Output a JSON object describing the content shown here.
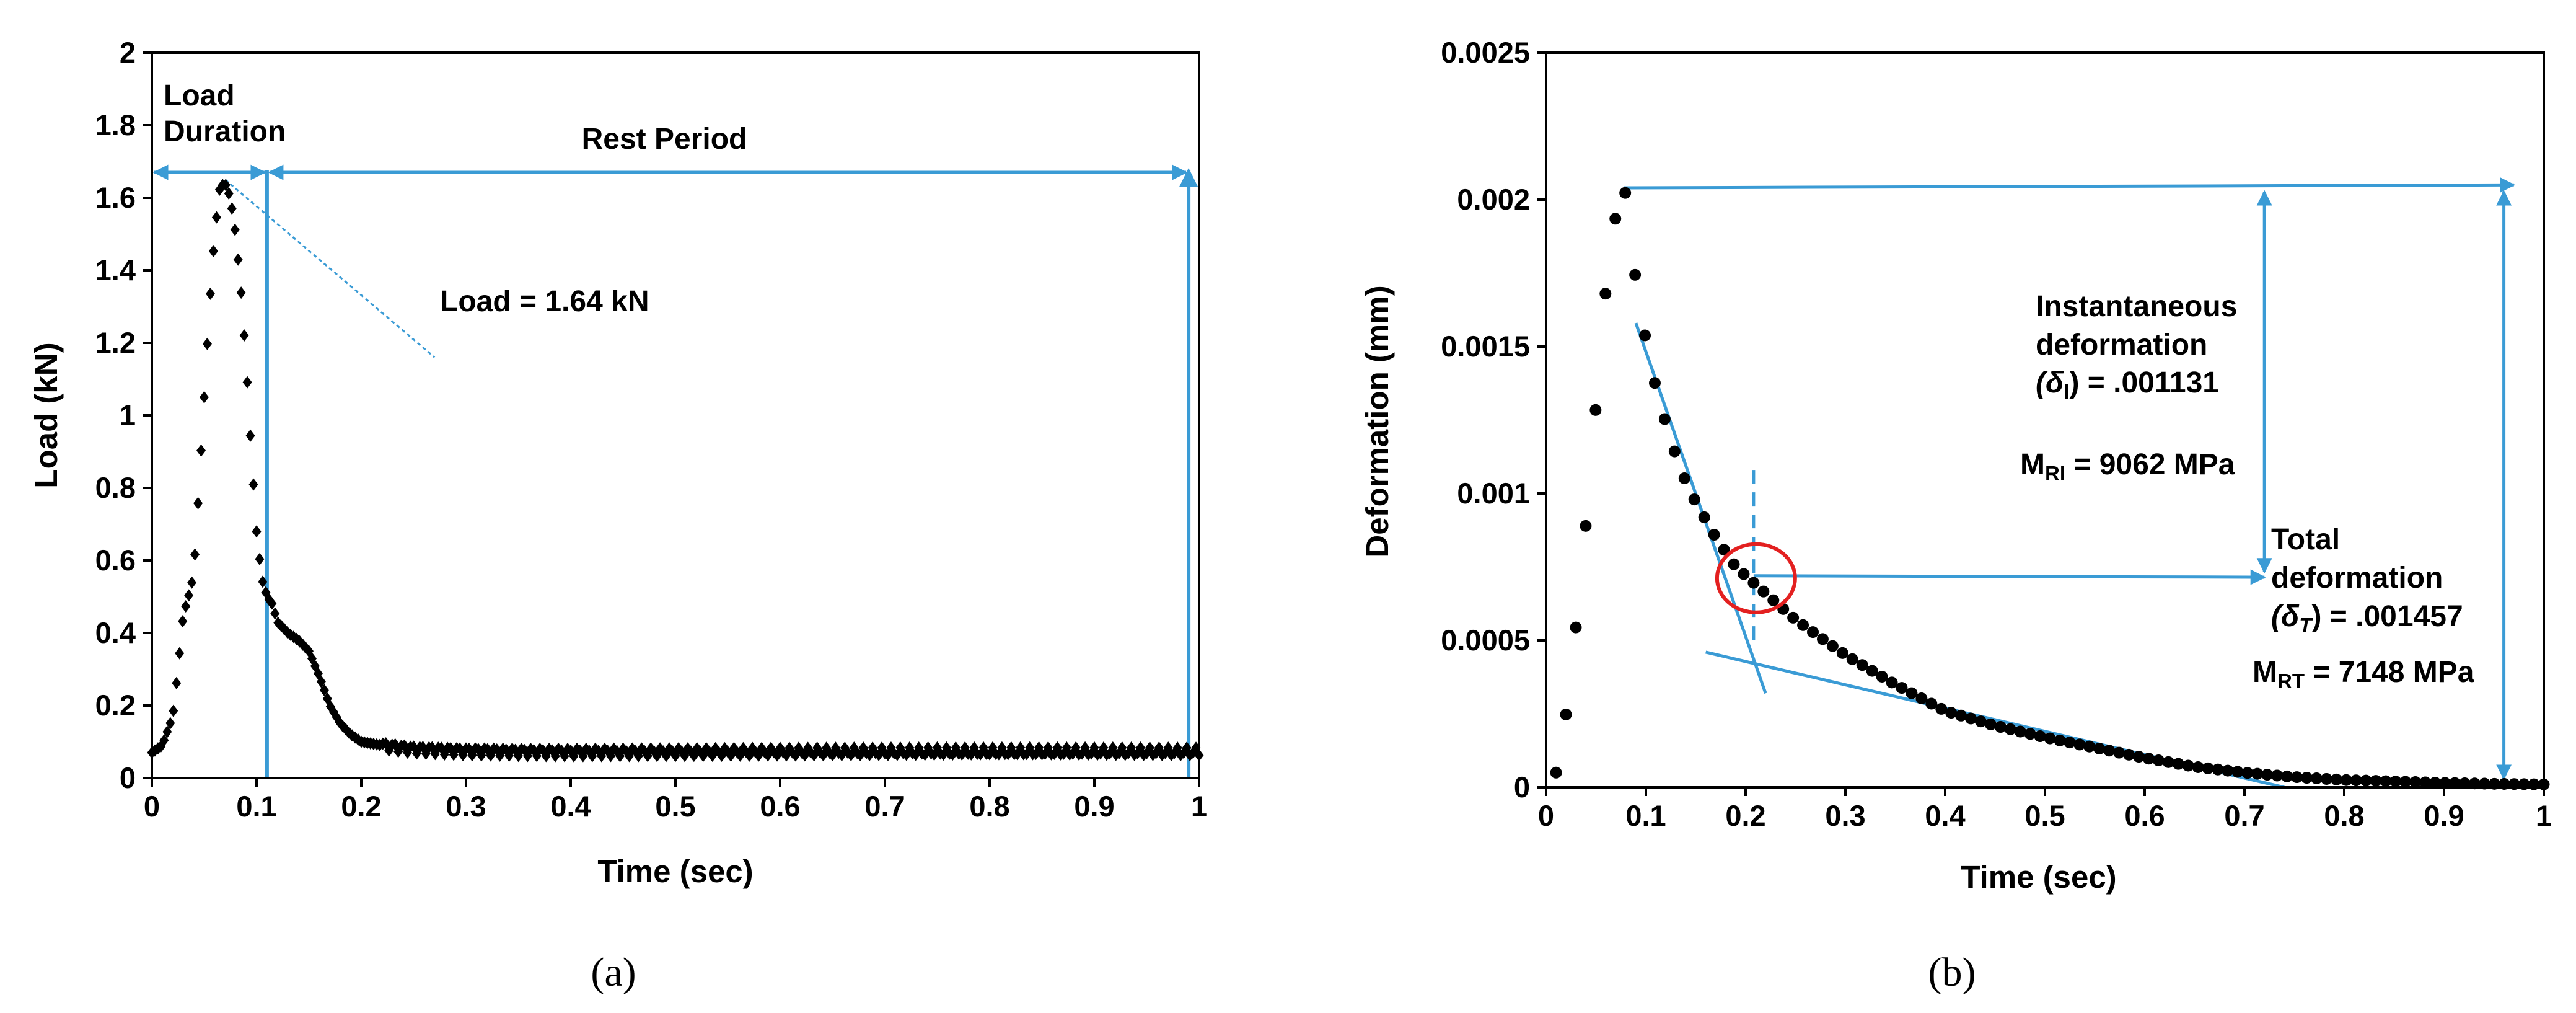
{
  "colors": {
    "annotation": "#3a9bd5",
    "highlight": "#e32020",
    "marker": "#000000"
  },
  "chart_data": [
    {
      "type": "scatter",
      "panel_label": "(a)",
      "marker": "diamond",
      "xlabel": "Time (sec)",
      "ylabel": "Load (kN)",
      "xlim": [
        0,
        1
      ],
      "ylim": [
        0,
        2
      ],
      "xticks": [
        "0",
        "0.1",
        "0.2",
        "0.3",
        "0.4",
        "0.5",
        "0.6",
        "0.7",
        "0.8",
        "0.9",
        "1"
      ],
      "yticks": [
        "0",
        "0.2",
        "0.4",
        "0.6",
        "0.8",
        "1",
        "1.2",
        "1.4",
        "1.6",
        "1.8",
        "2"
      ],
      "grid": false,
      "profile": {
        "x": [
          0,
          0.01,
          0.02,
          0.025,
          0.03,
          0.035,
          0.04,
          0.045,
          0.05,
          0.055,
          0.06,
          0.065,
          0.07,
          0.075,
          0.08,
          0.085,
          0.09,
          0.095,
          0.1,
          0.105,
          0.11,
          0.115,
          0.12,
          0.13,
          0.14,
          0.15,
          0.16,
          0.17,
          0.18,
          0.19,
          0.2,
          0.22,
          0.25,
          0.3,
          0.35,
          0.4,
          0.5,
          0.6,
          0.7,
          0.8,
          0.9,
          1.0
        ],
        "y": [
          0.07,
          0.09,
          0.17,
          0.3,
          0.45,
          0.5,
          0.56,
          0.8,
          1.05,
          1.3,
          1.5,
          1.63,
          1.64,
          1.6,
          1.5,
          1.35,
          1.15,
          0.9,
          0.68,
          0.55,
          0.5,
          0.48,
          0.43,
          0.4,
          0.38,
          0.35,
          0.28,
          0.2,
          0.15,
          0.12,
          0.1,
          0.09,
          0.08,
          0.075,
          0.073,
          0.072,
          0.072,
          0.072,
          0.072,
          0.072,
          0.072,
          0.072
        ]
      },
      "annotations": {
        "load_duration": "Load\nDuration",
        "rest_period": "Rest Period",
        "peak_load": "Load = 1.64 kN",
        "load_duration_x": [
          0,
          0.11
        ],
        "rest_period_x": [
          0.11,
          0.99
        ],
        "arrow_y": 1.67,
        "divider_x": [
          0.11,
          0.99
        ],
        "peak_point": [
          0.07,
          1.65
        ]
      }
    },
    {
      "type": "scatter",
      "panel_label": "(b)",
      "marker": "circle",
      "xlabel": "Time (sec)",
      "ylabel": "Deformation (mm)",
      "xlim": [
        0,
        1
      ],
      "ylim": [
        0,
        0.0025
      ],
      "xticks": [
        "0",
        "0.1",
        "0.2",
        "0.3",
        "0.4",
        "0.5",
        "0.6",
        "0.7",
        "0.8",
        "0.9",
        "1"
      ],
      "yticks": [
        "0",
        "0.0005",
        "0.001",
        "0.0015",
        "0.002",
        "0.0025"
      ],
      "grid": false,
      "profile": {
        "x": [
          0.01,
          0.02,
          0.03,
          0.04,
          0.05,
          0.06,
          0.07,
          0.075,
          0.08,
          0.09,
          0.1,
          0.11,
          0.12,
          0.13,
          0.14,
          0.15,
          0.17,
          0.19,
          0.21,
          0.23,
          0.25,
          0.3,
          0.35,
          0.4,
          0.45,
          0.5,
          0.55,
          0.6,
          0.65,
          0.7,
          0.75,
          0.8,
          0.85,
          0.9,
          0.95,
          1.0
        ],
        "y": [
          5e-05,
          0.00025,
          0.00055,
          0.0009,
          0.0013,
          0.0017,
          0.00195,
          0.00204,
          0.00202,
          0.00172,
          0.00152,
          0.00136,
          0.00124,
          0.00113,
          0.00104,
          0.00097,
          0.00085,
          0.00075,
          0.00069,
          0.00063,
          0.00057,
          0.00045,
          0.00035,
          0.00026,
          0.00021,
          0.00017,
          0.000135,
          0.0001,
          7e-05,
          5e-05,
          3.5e-05,
          2.5e-05,
          2e-05,
          1.5e-05,
          1.2e-05,
          1e-05
        ]
      },
      "annotations": {
        "instantaneous_line1": "Instantaneous",
        "instantaneous_line2": "deformation",
        "instantaneous_symbol": "(δ",
        "instantaneous_sub": "I",
        "instantaneous_value": ") = .001131",
        "mri_main": "M",
        "mri_sub": "RI",
        "mri_value": " = 9062 MPa",
        "total_line1": "Total",
        "total_line2": "deformation",
        "total_symbol": "(δ",
        "total_sub": "T",
        "total_value": ") = .001457",
        "mrt_main": "M",
        "mrt_sub": "RT",
        "mrt_value": " = 7148 MPa",
        "peak_point": [
          0.078,
          0.00204
        ],
        "intersection_point": [
          0.208,
          0.00072
        ],
        "peak_line_end_x": 0.97,
        "instantaneous_arrow_x": 0.72,
        "total_arrow_x": 0.96,
        "tangent1": [
          [
            0.09,
            0.00158
          ],
          [
            0.22,
            0.00032
          ]
        ],
        "tangent2": [
          [
            0.16,
            0.00046
          ],
          [
            0.74,
            0.0
          ]
        ],
        "dashed_x": 0.208,
        "dashed_y": [
          0.00108,
          0.00048
        ]
      }
    }
  ]
}
